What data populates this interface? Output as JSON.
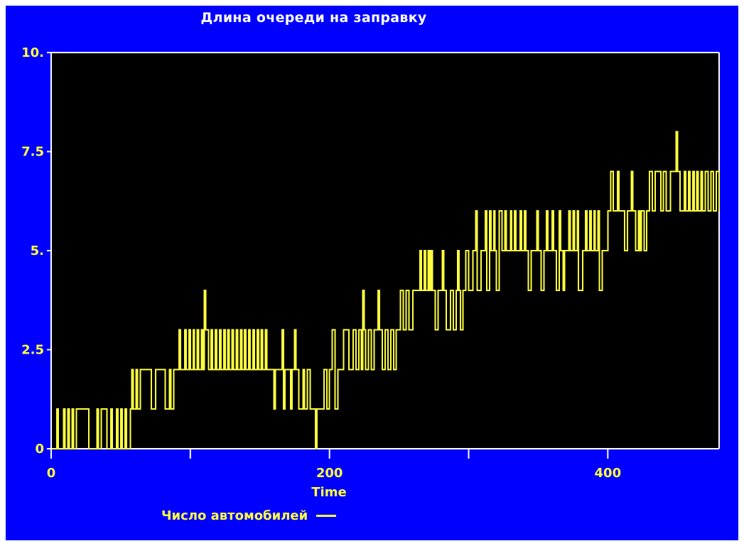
{
  "colors": {
    "background": "#0000ff",
    "plot": "#000000",
    "axis": "#ffffff",
    "text": "#ffff40",
    "series": "#ffff40"
  },
  "chart_data": {
    "type": "line",
    "title": "Длина очереди на заправку",
    "xlabel": "Time",
    "ylabel": "",
    "xlim": [
      0,
      480
    ],
    "ylim": [
      0,
      10
    ],
    "x_ticks": [
      0,
      100,
      200,
      300,
      400
    ],
    "x_tick_labels": [
      "0",
      "",
      "200",
      "",
      "400"
    ],
    "y_ticks": [
      0,
      2.5,
      5,
      7.5,
      10
    ],
    "y_tick_labels": [
      "0",
      "2.5",
      "5.",
      "7.5",
      "10."
    ],
    "legend": {
      "position": "bottom-left"
    },
    "series": [
      {
        "name": "Число автомобилей",
        "step": true,
        "points": [
          [
            0,
            0
          ],
          [
            4,
            1
          ],
          [
            5,
            0
          ],
          [
            9,
            1
          ],
          [
            10,
            0
          ],
          [
            12,
            1
          ],
          [
            13,
            0
          ],
          [
            15,
            1
          ],
          [
            16,
            0
          ],
          [
            18,
            1
          ],
          [
            27,
            0
          ],
          [
            33,
            1
          ],
          [
            34,
            0
          ],
          [
            36,
            1
          ],
          [
            40,
            0
          ],
          [
            43,
            1
          ],
          [
            44,
            0
          ],
          [
            47,
            1
          ],
          [
            48,
            0
          ],
          [
            50,
            1
          ],
          [
            51,
            0
          ],
          [
            53,
            1
          ],
          [
            54,
            0
          ],
          [
            57,
            1
          ],
          [
            58,
            2
          ],
          [
            59,
            1
          ],
          [
            61,
            2
          ],
          [
            62,
            1
          ],
          [
            64,
            2
          ],
          [
            72,
            1
          ],
          [
            75,
            2
          ],
          [
            82,
            1
          ],
          [
            85,
            2
          ],
          [
            86,
            1
          ],
          [
            88,
            2
          ],
          [
            92,
            3
          ],
          [
            93,
            2
          ],
          [
            96,
            3
          ],
          [
            97,
            2
          ],
          [
            99,
            3
          ],
          [
            100,
            2
          ],
          [
            102,
            3
          ],
          [
            103,
            2
          ],
          [
            105,
            3
          ],
          [
            106,
            2
          ],
          [
            108,
            3
          ],
          [
            109,
            2
          ],
          [
            110,
            4
          ],
          [
            111,
            3
          ],
          [
            113,
            2
          ],
          [
            115,
            3
          ],
          [
            116,
            2
          ],
          [
            118,
            3
          ],
          [
            119,
            2
          ],
          [
            121,
            3
          ],
          [
            122,
            2
          ],
          [
            124,
            3
          ],
          [
            125,
            2
          ],
          [
            127,
            3
          ],
          [
            128,
            2
          ],
          [
            130,
            3
          ],
          [
            131,
            2
          ],
          [
            133,
            3
          ],
          [
            134,
            2
          ],
          [
            136,
            3
          ],
          [
            137,
            2
          ],
          [
            139,
            3
          ],
          [
            140,
            2
          ],
          [
            142,
            3
          ],
          [
            143,
            2
          ],
          [
            145,
            3
          ],
          [
            146,
            2
          ],
          [
            148,
            3
          ],
          [
            149,
            2
          ],
          [
            151,
            3
          ],
          [
            152,
            2
          ],
          [
            154,
            3
          ],
          [
            155,
            2
          ],
          [
            156,
            2
          ],
          [
            160,
            1
          ],
          [
            161,
            2
          ],
          [
            166,
            3
          ],
          [
            167,
            1
          ],
          [
            168,
            2
          ],
          [
            172,
            1
          ],
          [
            173,
            2
          ],
          [
            175,
            3
          ],
          [
            176,
            2
          ],
          [
            178,
            1
          ],
          [
            181,
            2
          ],
          [
            182,
            1
          ],
          [
            184,
            2
          ],
          [
            186,
            1
          ],
          [
            190,
            0
          ],
          [
            191,
            1
          ],
          [
            196,
            2
          ],
          [
            198,
            1
          ],
          [
            200,
            2
          ],
          [
            202,
            3
          ],
          [
            204,
            1
          ],
          [
            206,
            2
          ],
          [
            208,
            2
          ],
          [
            210,
            3
          ],
          [
            214,
            2
          ],
          [
            217,
            3
          ],
          [
            219,
            2
          ],
          [
            221,
            3
          ],
          [
            223,
            2
          ],
          [
            224,
            4
          ],
          [
            225,
            3
          ],
          [
            226,
            2
          ],
          [
            228,
            3
          ],
          [
            230,
            2
          ],
          [
            232,
            3
          ],
          [
            235,
            4
          ],
          [
            236,
            3
          ],
          [
            238,
            2
          ],
          [
            240,
            3
          ],
          [
            242,
            2
          ],
          [
            244,
            3
          ],
          [
            246,
            2
          ],
          [
            248,
            3
          ],
          [
            251,
            4
          ],
          [
            253,
            3
          ],
          [
            255,
            4
          ],
          [
            257,
            3
          ],
          [
            260,
            4
          ],
          [
            263,
            4
          ],
          [
            265,
            5
          ],
          [
            266,
            4
          ],
          [
            268,
            5
          ],
          [
            269,
            4
          ],
          [
            271,
            5
          ],
          [
            272,
            4
          ],
          [
            273,
            5
          ],
          [
            274,
            4
          ],
          [
            276,
            3
          ],
          [
            278,
            4
          ],
          [
            281,
            5
          ],
          [
            282,
            4
          ],
          [
            284,
            3
          ],
          [
            287,
            4
          ],
          [
            289,
            3
          ],
          [
            291,
            4
          ],
          [
            292,
            5
          ],
          [
            293,
            4
          ],
          [
            294,
            3
          ],
          [
            296,
            4
          ],
          [
            298,
            5
          ],
          [
            300,
            4
          ],
          [
            303,
            5
          ],
          [
            305,
            6
          ],
          [
            306,
            4
          ],
          [
            309,
            5
          ],
          [
            312,
            6
          ],
          [
            313,
            4
          ],
          [
            315,
            6
          ],
          [
            316,
            5
          ],
          [
            318,
            6
          ],
          [
            319,
            5
          ],
          [
            320,
            4
          ],
          [
            322,
            6
          ],
          [
            324,
            5
          ],
          [
            326,
            6
          ],
          [
            327,
            5
          ],
          [
            330,
            6
          ],
          [
            331,
            5
          ],
          [
            333,
            6
          ],
          [
            334,
            5
          ],
          [
            337,
            6
          ],
          [
            338,
            5
          ],
          [
            340,
            6
          ],
          [
            341,
            5
          ],
          [
            343,
            4
          ],
          [
            345,
            5
          ],
          [
            349,
            6
          ],
          [
            350,
            5
          ],
          [
            352,
            4
          ],
          [
            354,
            5
          ],
          [
            356,
            6
          ],
          [
            357,
            5
          ],
          [
            360,
            6
          ],
          [
            361,
            5
          ],
          [
            363,
            4
          ],
          [
            365,
            6
          ],
          [
            366,
            5
          ],
          [
            368,
            4
          ],
          [
            369,
            5
          ],
          [
            372,
            6
          ],
          [
            373,
            5
          ],
          [
            375,
            6
          ],
          [
            376,
            5
          ],
          [
            378,
            6
          ],
          [
            379,
            4
          ],
          [
            382,
            5
          ],
          [
            384,
            6
          ],
          [
            385,
            5
          ],
          [
            387,
            6
          ],
          [
            388,
            5
          ],
          [
            390,
            6
          ],
          [
            391,
            5
          ],
          [
            393,
            6
          ],
          [
            394,
            4
          ],
          [
            396,
            5
          ],
          [
            400,
            6
          ],
          [
            402,
            7
          ],
          [
            404,
            6
          ],
          [
            407,
            7
          ],
          [
            408,
            6
          ],
          [
            410,
            6
          ],
          [
            412,
            5
          ],
          [
            414,
            6
          ],
          [
            417,
            7
          ],
          [
            418,
            6
          ],
          [
            420,
            5
          ],
          [
            422,
            6
          ],
          [
            423,
            5
          ],
          [
            424,
            6
          ],
          [
            426,
            5
          ],
          [
            428,
            6
          ],
          [
            430,
            7
          ],
          [
            432,
            6
          ],
          [
            434,
            7
          ],
          [
            436,
            7
          ],
          [
            438,
            6
          ],
          [
            440,
            7
          ],
          [
            442,
            6
          ],
          [
            445,
            7
          ],
          [
            448,
            7
          ],
          [
            449,
            8
          ],
          [
            450,
            7
          ],
          [
            451,
            7
          ],
          [
            452,
            6
          ],
          [
            455,
            7
          ],
          [
            456,
            6
          ],
          [
            458,
            7
          ],
          [
            459,
            6
          ],
          [
            461,
            7
          ],
          [
            462,
            6
          ],
          [
            464,
            7
          ],
          [
            465,
            6
          ],
          [
            467,
            7
          ],
          [
            468,
            6
          ],
          [
            470,
            7
          ],
          [
            472,
            6
          ],
          [
            474,
            7
          ],
          [
            476,
            6
          ],
          [
            478,
            7
          ],
          [
            480,
            6
          ]
        ]
      }
    ]
  }
}
